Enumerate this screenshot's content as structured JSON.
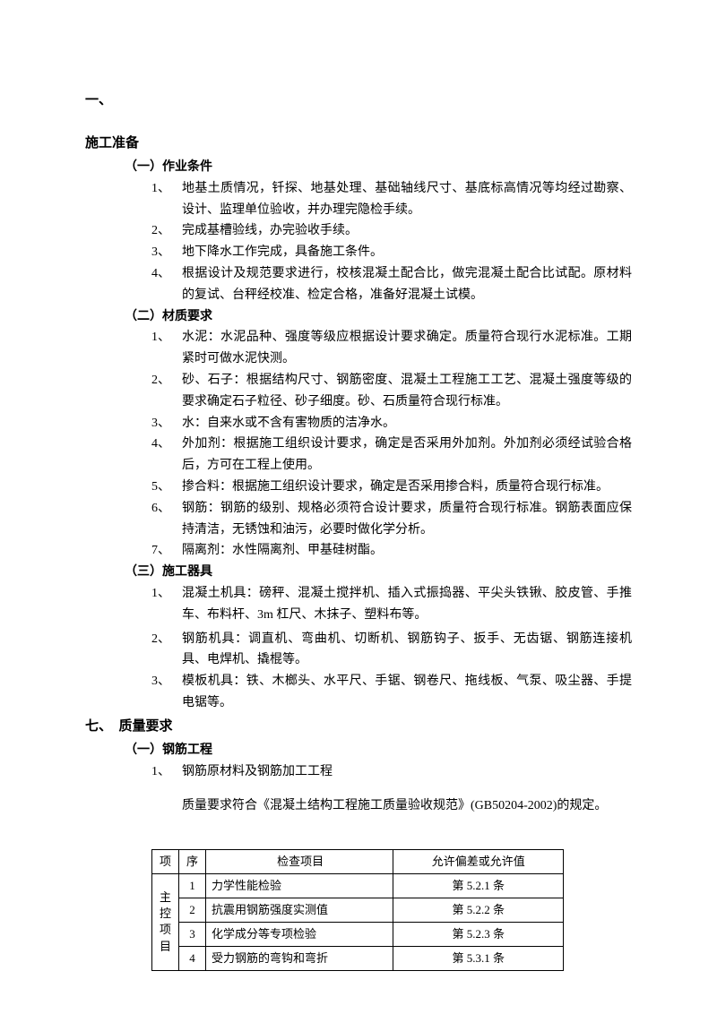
{
  "section1": {
    "num": "一、",
    "title": "施工准备",
    "sub1": {
      "title": "（一）作业条件",
      "items": [
        {
          "num": "1、",
          "text": "地基土质情况，钎探、地基处理、基础轴线尺寸、基底标高情况等均经过勘察、设计、监理单位验收，并办理完隐检手续。"
        },
        {
          "num": "2、",
          "text": "完成基槽验线，办完验收手续。"
        },
        {
          "num": "3、",
          "text": "地下降水工作完成，具备施工条件。"
        },
        {
          "num": "4、",
          "text": "根据设计及规范要求进行，校核混凝土配合比，做完混凝土配合比试配。原材料的复试、台秤经校准、检定合格，准备好混凝土试模。"
        }
      ]
    },
    "sub2": {
      "title": "（二）材质要求",
      "items": [
        {
          "num": "1、",
          "text": "水泥：水泥品种、强度等级应根据设计要求确定。质量符合现行水泥标准。工期紧时可做水泥快测。"
        },
        {
          "num": "2、",
          "text": "砂、石子：根据结构尺寸、钢筋密度、混凝土工程施工工艺、混凝土强度等级的要求确定石子粒径、砂子细度。砂、石质量符合现行标准。"
        },
        {
          "num": "3、",
          "text": "水：自来水或不含有害物质的洁净水。"
        },
        {
          "num": "4、",
          "text": "外加剂：根据施工组织设计要求，确定是否采用外加剂。外加剂必须经试验合格后，方可在工程上使用。"
        },
        {
          "num": "5、",
          "text": "掺合料：根据施工组织设计要求，确定是否采用掺合料，质量符合现行标准。"
        },
        {
          "num": "6、",
          "text": "钢筋：钢筋的级别、规格必须符合设计要求，质量符合现行标准。钢筋表面应保持清洁，无锈蚀和油污，必要时做化学分析。"
        },
        {
          "num": "7、",
          "text": "隔离剂：水性隔离剂、甲基硅树酯。"
        }
      ]
    },
    "sub3": {
      "title": "（三）施工器具",
      "items": [
        {
          "num": "1、",
          "text": "混凝土机具：磅秤、混凝土搅拌机、插入式振捣器、平尖头铁锹、胶皮管、手推车、布料杆、3m 杠尺、木抹子、塑料布等。"
        },
        {
          "num": "2、",
          "text": "钢筋机具：调直机、弯曲机、切断机、钢筋钩子、扳手、无齿锯、钢筋连接机具、电焊机、撬棍等。"
        },
        {
          "num": "3、",
          "text": "模板机具：铁、木榔头、水平尺、手锯、钢卷尺、拖线板、气泵、吸尘器、手提电锯等。"
        }
      ]
    }
  },
  "section7": {
    "num": "七、",
    "title": "质量要求",
    "sub1": {
      "title": "（一）钢筋工程",
      "items": [
        {
          "num": "1、",
          "text": "钢筋原材料及钢筋加工工程"
        }
      ],
      "para": "质量要求符合《混凝土结构工程施工质量验收规范》(GB50204-2002)的规定。"
    }
  },
  "table": {
    "headers": {
      "category": "项",
      "seq": "序",
      "item": "检查项目",
      "allow": "允许偏差或允许值"
    },
    "categoryLabel": "主控项目",
    "rows": [
      {
        "seq": "1",
        "item": "力学性能检验",
        "allow": "第 5.2.1 条"
      },
      {
        "seq": "2",
        "item": "抗震用钢筋强度实测值",
        "allow": "第 5.2.2 条"
      },
      {
        "seq": "3",
        "item": "化学成分等专项检验",
        "allow": "第 5.2.3 条"
      },
      {
        "seq": "4",
        "item": "受力钢筋的弯钩和弯折",
        "allow": "第 5.3.1 条"
      }
    ]
  }
}
